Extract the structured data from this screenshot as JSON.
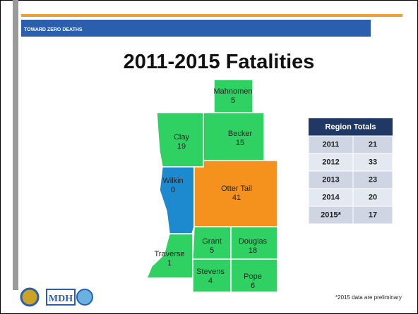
{
  "logo": "TOWARD ZERO DEATHS",
  "title": "2011-2015 Fatalities",
  "counties": [
    {
      "name": "Mahnomen",
      "value": 5
    },
    {
      "name": "Clay",
      "value": 19
    },
    {
      "name": "Becker",
      "value": 15
    },
    {
      "name": "Wilkin",
      "value": 0
    },
    {
      "name": "Otter Tail",
      "value": 41
    },
    {
      "name": "Grant",
      "value": 5
    },
    {
      "name": "Douglas",
      "value": 18
    },
    {
      "name": "Traverse",
      "value": 1
    },
    {
      "name": "Stevens",
      "value": 4
    },
    {
      "name": "Pope",
      "value": 6
    }
  ],
  "table": {
    "header": "Region Totals",
    "rows": [
      [
        "2011",
        21
      ],
      [
        "2012",
        33
      ],
      [
        "2013",
        23
      ],
      [
        "2014",
        20
      ],
      [
        "2015*",
        17
      ]
    ]
  },
  "footnote": "*2015 data are preliminary",
  "footer_logo": "MDH"
}
